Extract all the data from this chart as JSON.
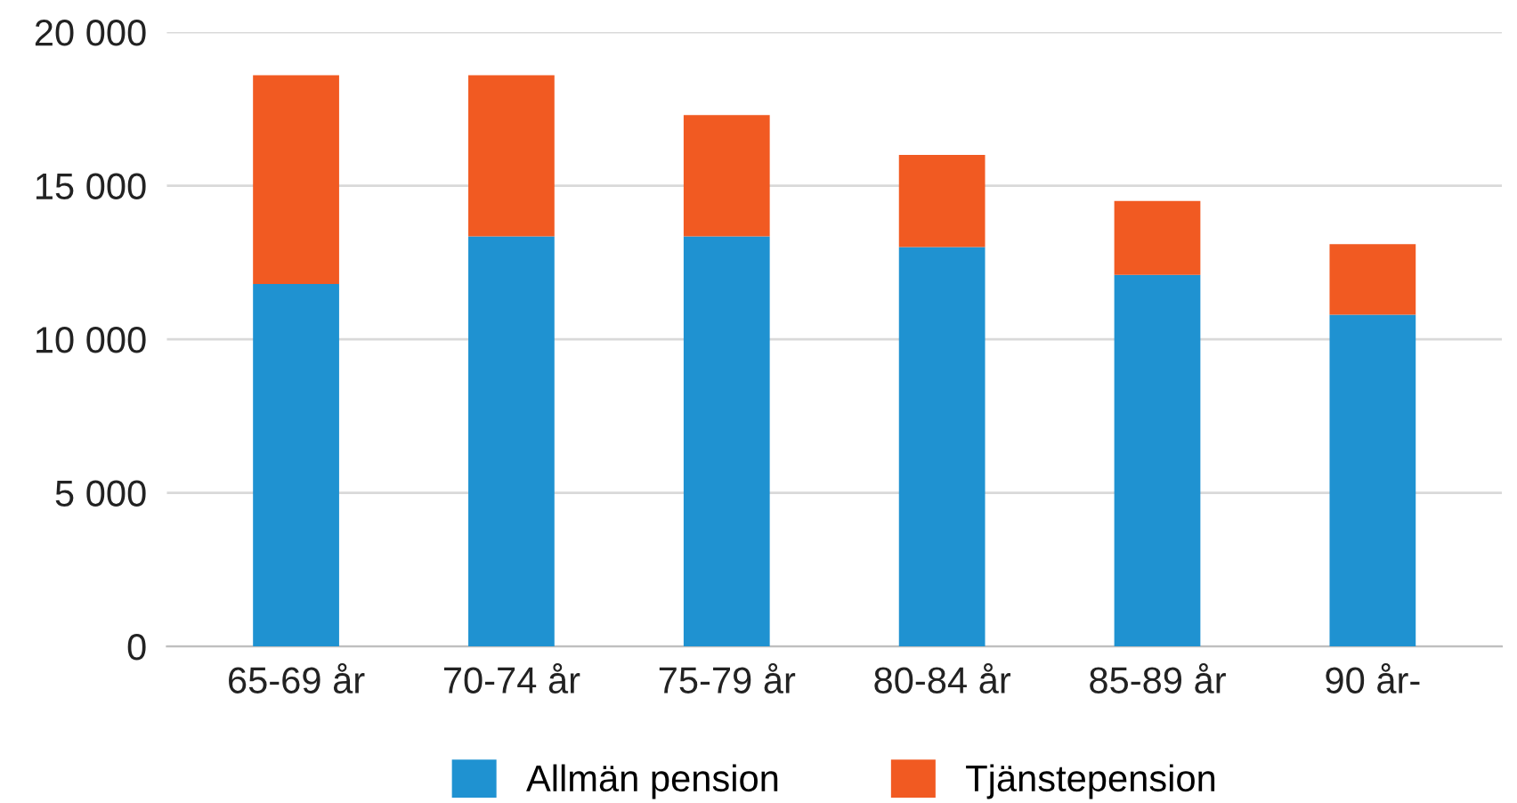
{
  "chart_data": {
    "type": "bar",
    "stacked": true,
    "categories": [
      "65-69 år",
      "70-74 år",
      "75-79 år",
      "80-84 år",
      "85-89 år",
      "90 år-"
    ],
    "series": [
      {
        "name": "Allmän pension",
        "color": "#1f92d1",
        "values": [
          11800,
          13350,
          13350,
          13000,
          12100,
          10800
        ]
      },
      {
        "name": "Tjänstepension",
        "color": "#f15a22",
        "values": [
          6800,
          5250,
          3950,
          3000,
          2400,
          2300
        ]
      }
    ],
    "ylim": [
      0,
      20000
    ],
    "yticks": [
      0,
      {
        "value": 5000,
        "label": "5 000"
      },
      {
        "value": 10000,
        "label": "10 000"
      },
      {
        "value": 15000,
        "label": "15 000"
      },
      {
        "value": 20000,
        "label": "20 000"
      }
    ],
    "grid": "y",
    "legend": "bottom"
  }
}
